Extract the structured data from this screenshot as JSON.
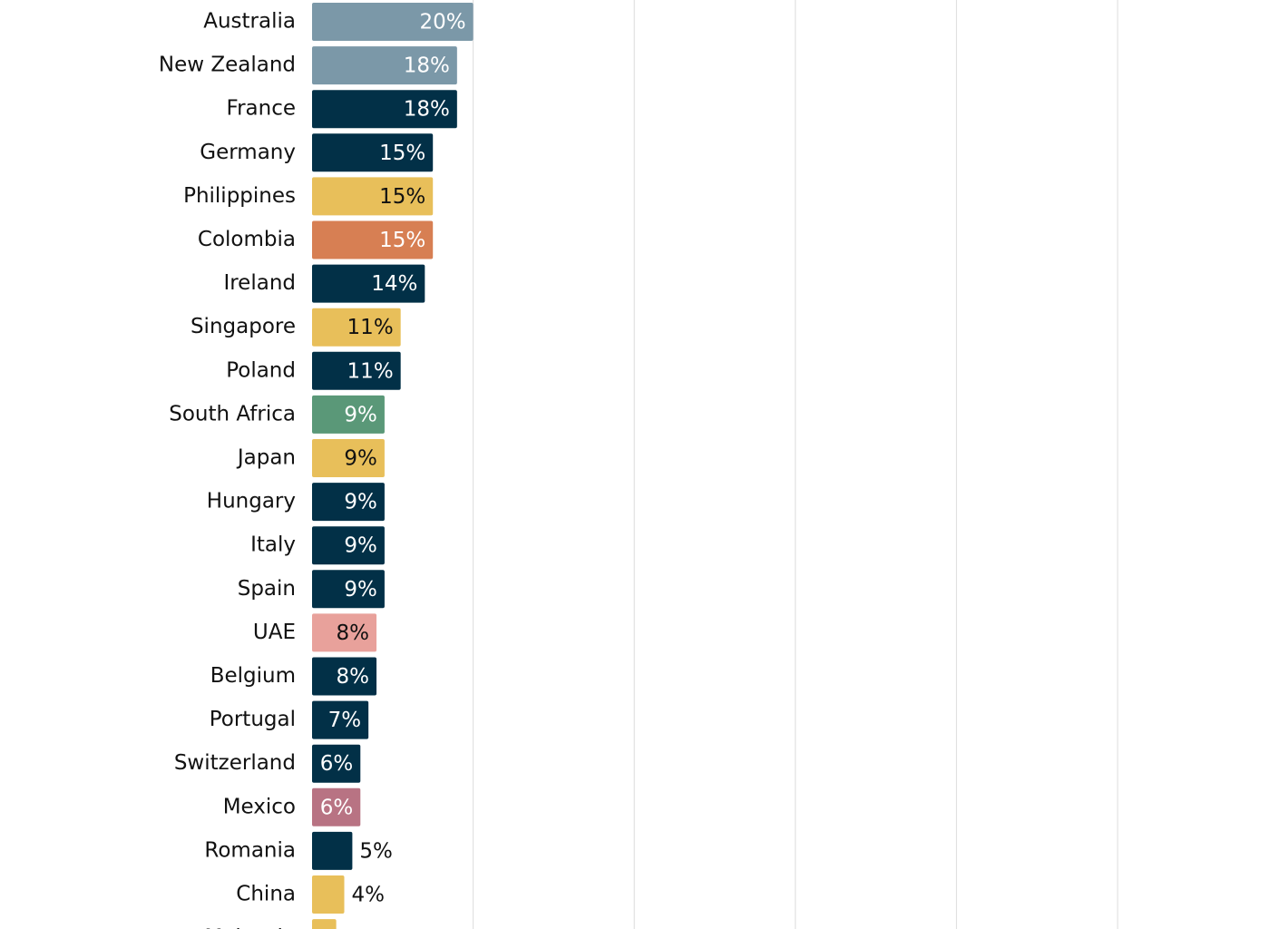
{
  "chart_data": {
    "type": "bar",
    "orientation": "horizontal",
    "categories": [
      "Australia",
      "New Zealand",
      "France",
      "Germany",
      "Philippines",
      "Colombia",
      "Ireland",
      "Singapore",
      "Poland",
      "South Africa",
      "Japan",
      "Hungary",
      "Italy",
      "Spain",
      "UAE",
      "Belgium",
      "Portugal",
      "Switzerland",
      "Mexico",
      "Romania",
      "China",
      "Malaysia"
    ],
    "values": [
      20,
      18,
      18,
      15,
      15,
      15,
      14,
      11,
      11,
      9,
      9,
      9,
      9,
      9,
      8,
      8,
      7,
      6,
      6,
      5,
      4,
      3
    ],
    "value_labels": [
      "20%",
      "18%",
      "18%",
      "15%",
      "15%",
      "15%",
      "14%",
      "11%",
      "11%",
      "9%",
      "9%",
      "9%",
      "9%",
      "9%",
      "8%",
      "8%",
      "7%",
      "6%",
      "6%",
      "5%",
      "4%",
      null
    ],
    "colors": [
      "#7b98a8",
      "#7b98a8",
      "#023047",
      "#023047",
      "#e8bf5a",
      "#d77f53",
      "#023047",
      "#e8bf5a",
      "#023047",
      "#5a9878",
      "#e8bf5a",
      "#023047",
      "#023047",
      "#023047",
      "#e8a19b",
      "#023047",
      "#023047",
      "#023047",
      "#b87383",
      "#023047",
      "#e8bf5a",
      "#e8bf5a"
    ],
    "xlim": [
      0,
      100
    ],
    "xticks": [
      20,
      40,
      60,
      80,
      100
    ],
    "grid": true
  }
}
